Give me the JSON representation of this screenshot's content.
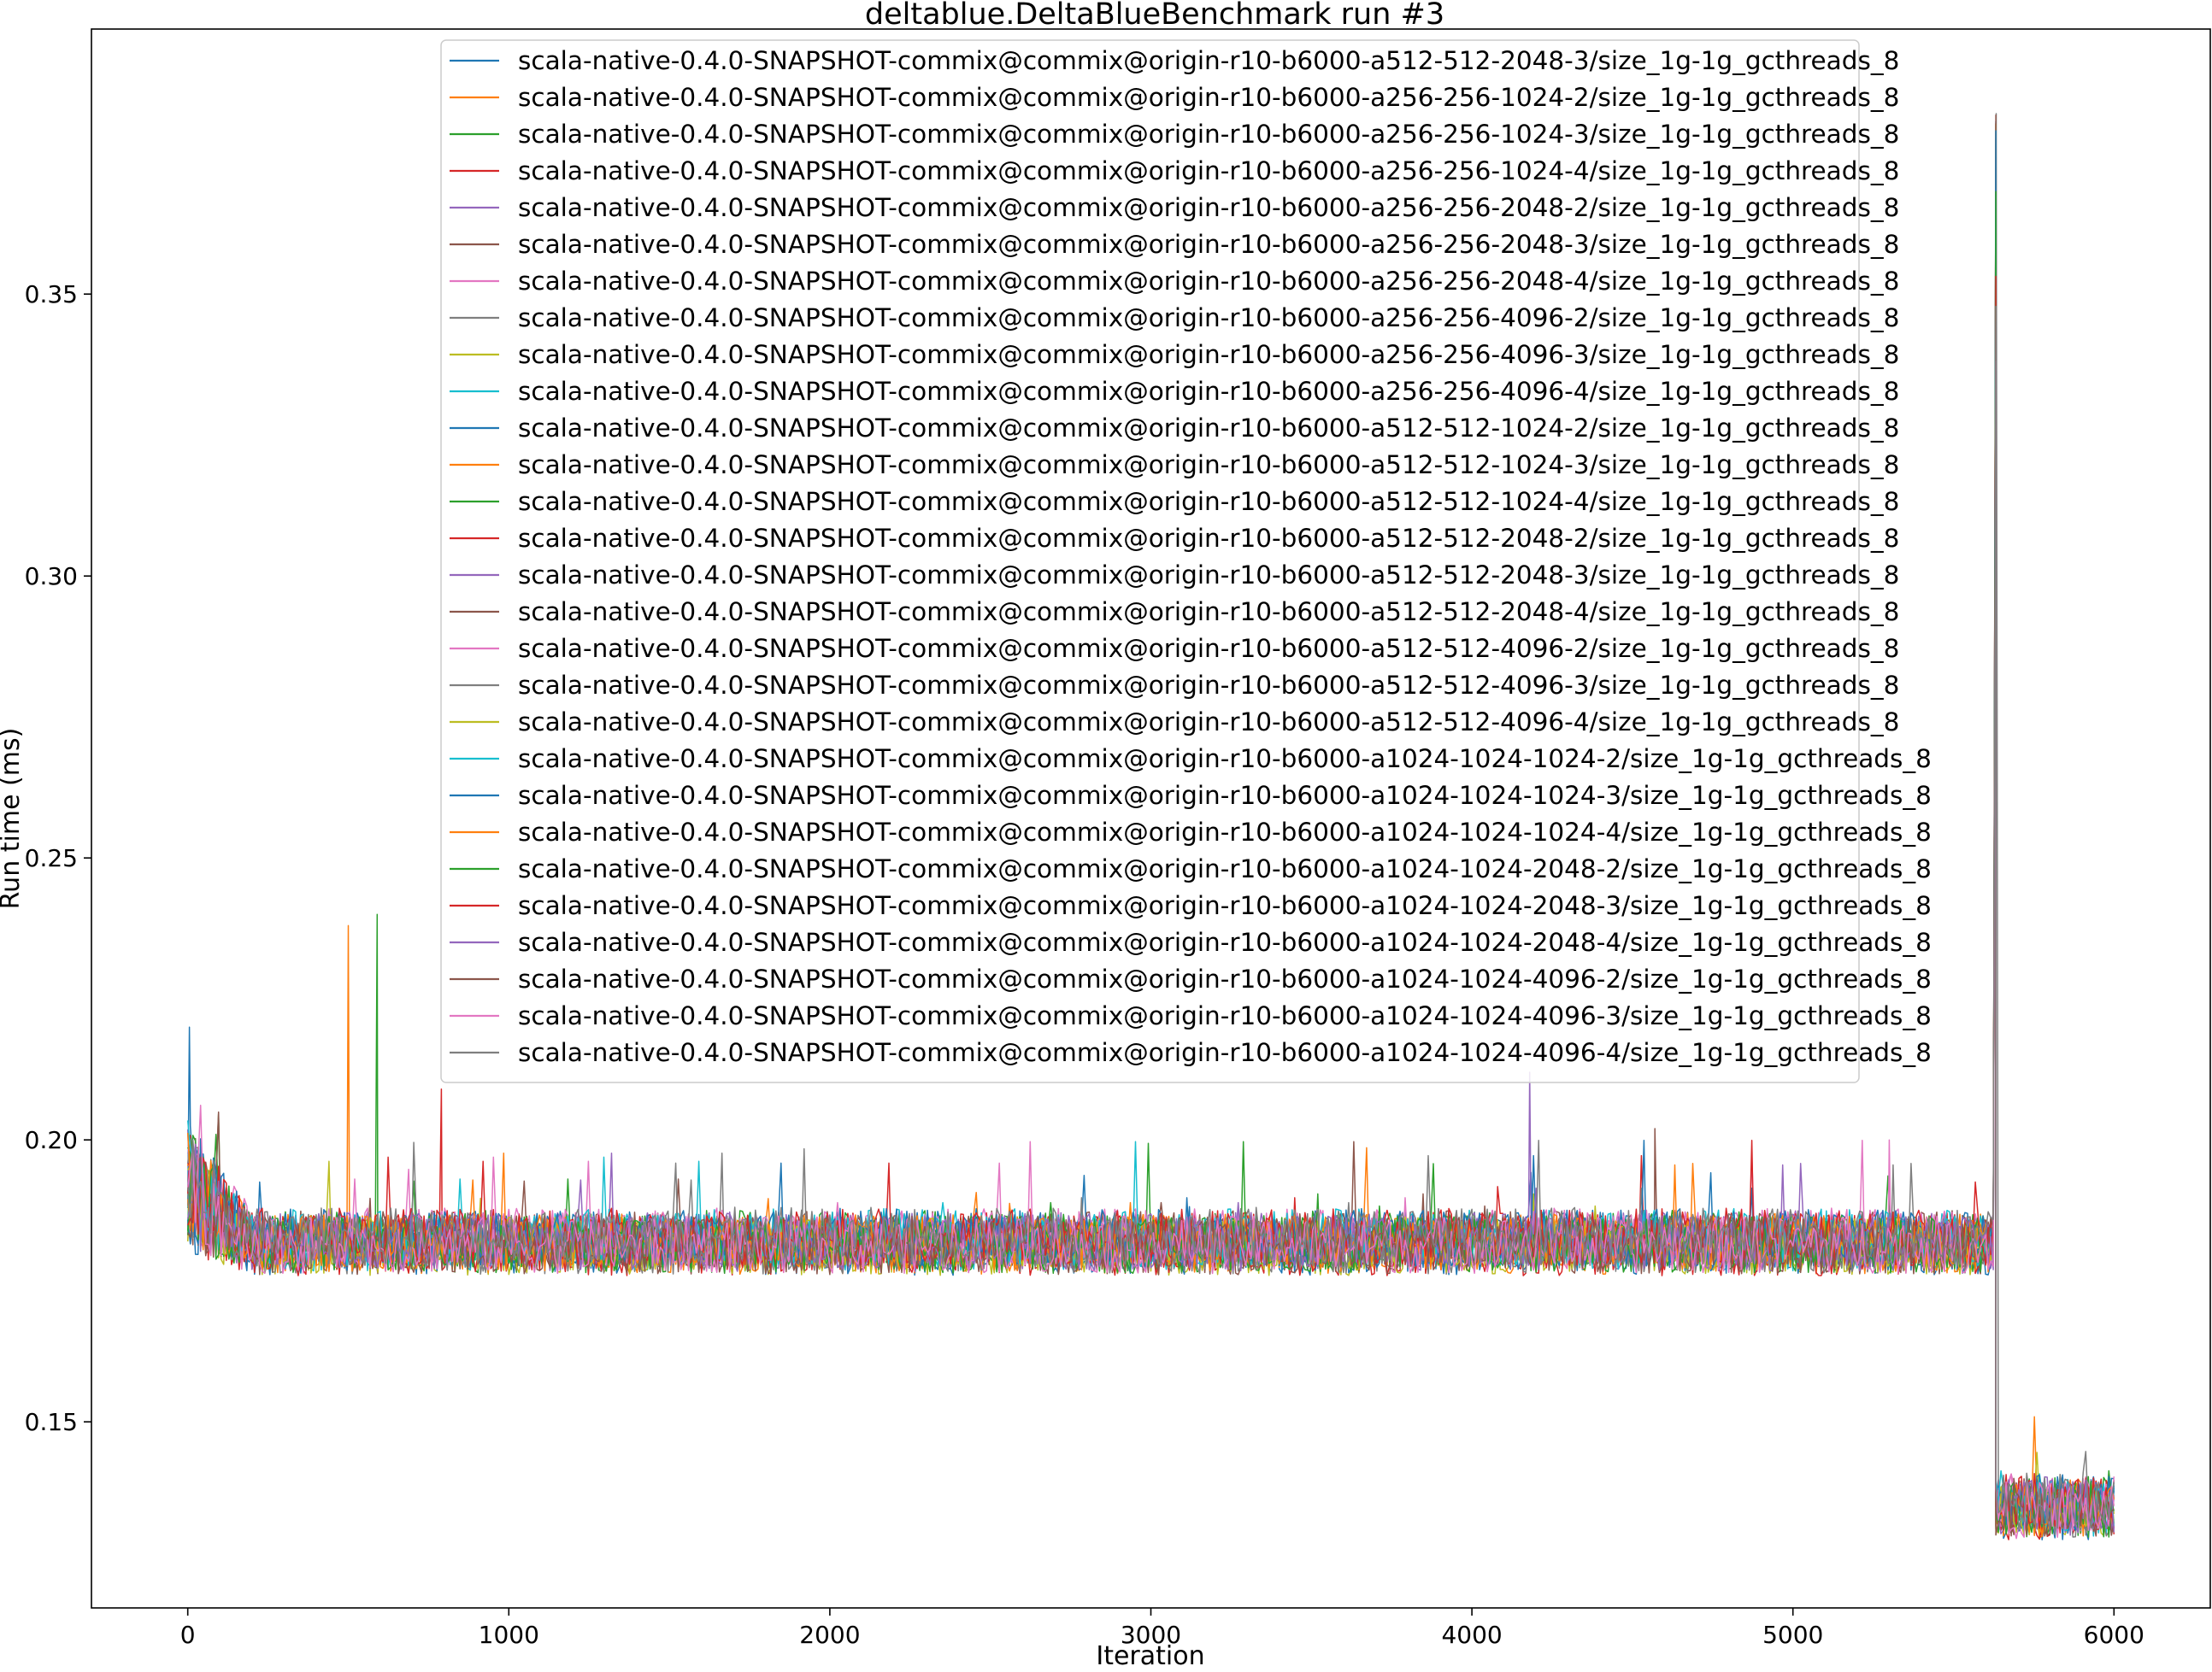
{
  "chart_data": {
    "type": "line",
    "title": "deltablue.DeltaBlueBenchmark run #3",
    "xlabel": "Iteration",
    "ylabel": "Run time (ms)",
    "xlim": [
      -300,
      6300
    ],
    "ylim": [
      0.117,
      0.397
    ],
    "xticks": [
      0,
      1000,
      2000,
      3000,
      4000,
      5000,
      6000
    ],
    "xtick_labels": [
      "0",
      "1000",
      "2000",
      "3000",
      "4000",
      "5000",
      "6000"
    ],
    "yticks": [
      0.15,
      0.2,
      0.25,
      0.3,
      0.35
    ],
    "ytick_labels": [
      "0.15",
      "0.20",
      "0.25",
      "0.30",
      "0.35"
    ],
    "grid": false,
    "legend_position": "top-center",
    "iterations": [
      0,
      6000
    ],
    "phases": [
      {
        "x_range": [
          0,
          200
        ],
        "run_time_range": [
          0.179,
          0.209
        ],
        "note": "warm-up, elevated"
      },
      {
        "x_range": [
          200,
          5630
        ],
        "run_time_range": [
          0.176,
          0.188
        ]
      },
      {
        "x_range": [
          5630,
          5640
        ],
        "run_time_range": [
          0.132,
          0.382
        ],
        "note": "spike then drop"
      },
      {
        "x_range": [
          5640,
          6000
        ],
        "run_time_range": [
          0.129,
          0.141
        ]
      }
    ],
    "notable_spikes": [
      {
        "x": 5,
        "y": 0.22
      },
      {
        "x": 500,
        "y": 0.238
      },
      {
        "x": 590,
        "y": 0.24
      },
      {
        "x": 790,
        "y": 0.209
      },
      {
        "x": 4180,
        "y": 0.212
      },
      {
        "x": 4570,
        "y": 0.202
      },
      {
        "x": 5300,
        "y": 0.2
      },
      {
        "x": 5633,
        "y": 0.382
      }
    ],
    "colors": [
      "#1f77b4",
      "#ff7f0e",
      "#2ca02c",
      "#d62728",
      "#9467bd",
      "#8c564b",
      "#e377c2",
      "#7f7f7f",
      "#bcbd22",
      "#17becf"
    ],
    "series": [
      {
        "name": "scala-native-0.4.0-SNAPSHOT-commix@commix@origin-r10-b6000-a512-512-2048-3/size_1g-1g_gcthreads_8"
      },
      {
        "name": "scala-native-0.4.0-SNAPSHOT-commix@commix@origin-r10-b6000-a256-256-1024-2/size_1g-1g_gcthreads_8"
      },
      {
        "name": "scala-native-0.4.0-SNAPSHOT-commix@commix@origin-r10-b6000-a256-256-1024-3/size_1g-1g_gcthreads_8"
      },
      {
        "name": "scala-native-0.4.0-SNAPSHOT-commix@commix@origin-r10-b6000-a256-256-1024-4/size_1g-1g_gcthreads_8"
      },
      {
        "name": "scala-native-0.4.0-SNAPSHOT-commix@commix@origin-r10-b6000-a256-256-2048-2/size_1g-1g_gcthreads_8"
      },
      {
        "name": "scala-native-0.4.0-SNAPSHOT-commix@commix@origin-r10-b6000-a256-256-2048-3/size_1g-1g_gcthreads_8"
      },
      {
        "name": "scala-native-0.4.0-SNAPSHOT-commix@commix@origin-r10-b6000-a256-256-2048-4/size_1g-1g_gcthreads_8"
      },
      {
        "name": "scala-native-0.4.0-SNAPSHOT-commix@commix@origin-r10-b6000-a256-256-4096-2/size_1g-1g_gcthreads_8"
      },
      {
        "name": "scala-native-0.4.0-SNAPSHOT-commix@commix@origin-r10-b6000-a256-256-4096-3/size_1g-1g_gcthreads_8"
      },
      {
        "name": "scala-native-0.4.0-SNAPSHOT-commix@commix@origin-r10-b6000-a256-256-4096-4/size_1g-1g_gcthreads_8"
      },
      {
        "name": "scala-native-0.4.0-SNAPSHOT-commix@commix@origin-r10-b6000-a512-512-1024-2/size_1g-1g_gcthreads_8"
      },
      {
        "name": "scala-native-0.4.0-SNAPSHOT-commix@commix@origin-r10-b6000-a512-512-1024-3/size_1g-1g_gcthreads_8"
      },
      {
        "name": "scala-native-0.4.0-SNAPSHOT-commix@commix@origin-r10-b6000-a512-512-1024-4/size_1g-1g_gcthreads_8"
      },
      {
        "name": "scala-native-0.4.0-SNAPSHOT-commix@commix@origin-r10-b6000-a512-512-2048-2/size_1g-1g_gcthreads_8"
      },
      {
        "name": "scala-native-0.4.0-SNAPSHOT-commix@commix@origin-r10-b6000-a512-512-2048-3/size_1g-1g_gcthreads_8"
      },
      {
        "name": "scala-native-0.4.0-SNAPSHOT-commix@commix@origin-r10-b6000-a512-512-2048-4/size_1g-1g_gcthreads_8"
      },
      {
        "name": "scala-native-0.4.0-SNAPSHOT-commix@commix@origin-r10-b6000-a512-512-4096-2/size_1g-1g_gcthreads_8"
      },
      {
        "name": "scala-native-0.4.0-SNAPSHOT-commix@commix@origin-r10-b6000-a512-512-4096-3/size_1g-1g_gcthreads_8"
      },
      {
        "name": "scala-native-0.4.0-SNAPSHOT-commix@commix@origin-r10-b6000-a512-512-4096-4/size_1g-1g_gcthreads_8"
      },
      {
        "name": "scala-native-0.4.0-SNAPSHOT-commix@commix@origin-r10-b6000-a1024-1024-1024-2/size_1g-1g_gcthreads_8"
      },
      {
        "name": "scala-native-0.4.0-SNAPSHOT-commix@commix@origin-r10-b6000-a1024-1024-1024-3/size_1g-1g_gcthreads_8"
      },
      {
        "name": "scala-native-0.4.0-SNAPSHOT-commix@commix@origin-r10-b6000-a1024-1024-1024-4/size_1g-1g_gcthreads_8"
      },
      {
        "name": "scala-native-0.4.0-SNAPSHOT-commix@commix@origin-r10-b6000-a1024-1024-2048-2/size_1g-1g_gcthreads_8"
      },
      {
        "name": "scala-native-0.4.0-SNAPSHOT-commix@commix@origin-r10-b6000-a1024-1024-2048-3/size_1g-1g_gcthreads_8"
      },
      {
        "name": "scala-native-0.4.0-SNAPSHOT-commix@commix@origin-r10-b6000-a1024-1024-2048-4/size_1g-1g_gcthreads_8"
      },
      {
        "name": "scala-native-0.4.0-SNAPSHOT-commix@commix@origin-r10-b6000-a1024-1024-4096-2/size_1g-1g_gcthreads_8"
      },
      {
        "name": "scala-native-0.4.0-SNAPSHOT-commix@commix@origin-r10-b6000-a1024-1024-4096-3/size_1g-1g_gcthreads_8"
      },
      {
        "name": "scala-native-0.4.0-SNAPSHOT-commix@commix@origin-r10-b6000-a1024-1024-4096-4/size_1g-1g_gcthreads_8"
      }
    ]
  }
}
